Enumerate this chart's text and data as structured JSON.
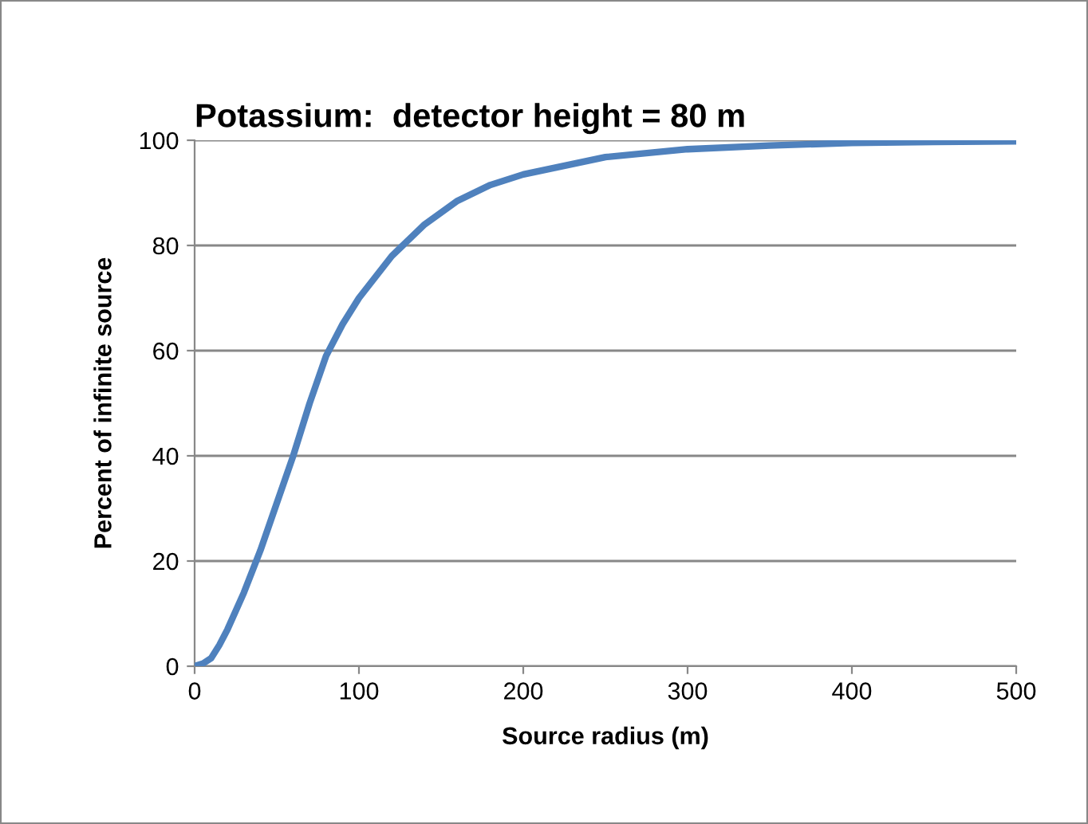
{
  "chart_data": {
    "type": "line",
    "title": "Potassium:  detector height = 80 m",
    "xlabel": "Source radius (m)",
    "ylabel": "Percent of infinite source",
    "x": [
      0,
      5,
      10,
      15,
      20,
      30,
      40,
      50,
      60,
      70,
      80,
      90,
      100,
      120,
      140,
      160,
      180,
      200,
      250,
      300,
      350,
      400,
      450,
      500
    ],
    "series": [
      {
        "color": "#4f81bd",
        "values": [
          0,
          0.5,
          1.5,
          4,
          7,
          14,
          22,
          31,
          40,
          50,
          59,
          65,
          70,
          78,
          84,
          88.5,
          91.5,
          93.5,
          96.8,
          98.3,
          99,
          99.5,
          99.7,
          99.8
        ]
      }
    ],
    "xlim": [
      0,
      500
    ],
    "xticks": [
      0,
      100,
      200,
      300,
      400,
      500
    ],
    "ylim": [
      0,
      100
    ],
    "yticks": [
      0,
      20,
      40,
      60,
      80,
      100
    ],
    "grid": "y",
    "legend": false,
    "marker": "none",
    "line_style": "solid"
  }
}
